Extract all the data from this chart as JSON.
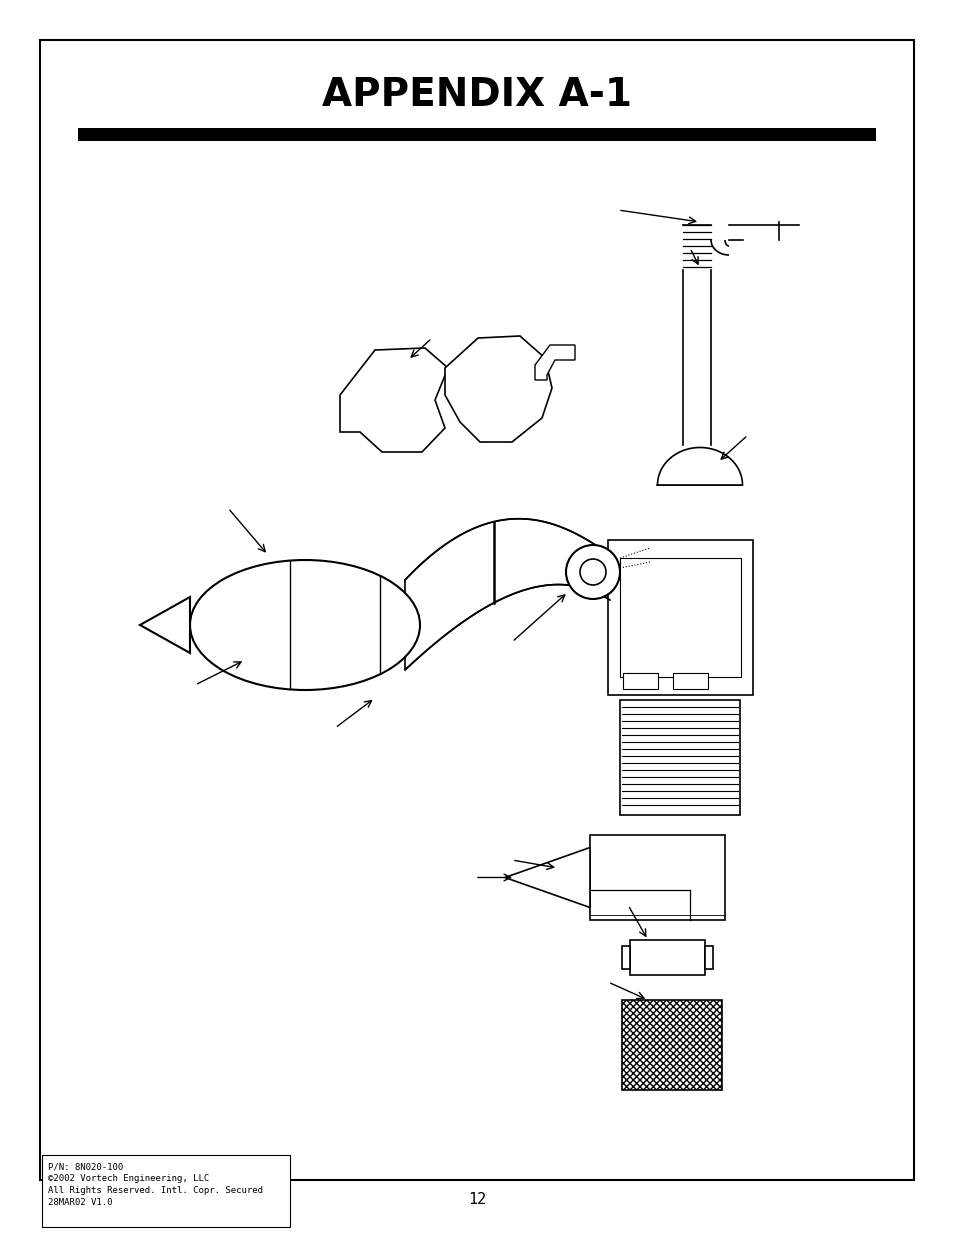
{
  "title": "APPENDIX A-1",
  "page_number": "12",
  "footer_line1": "P/N: 8N020-100",
  "footer_line2": "©2002 Vortech Engineering, LLC",
  "footer_line3": "All Rights Reserved. Intl. Copr. Secured",
  "footer_line4": "28MAR02 V1.0",
  "bg_color": "#ffffff",
  "border_color": "#000000",
  "title_color": "#000000",
  "bar_color": "#000000"
}
